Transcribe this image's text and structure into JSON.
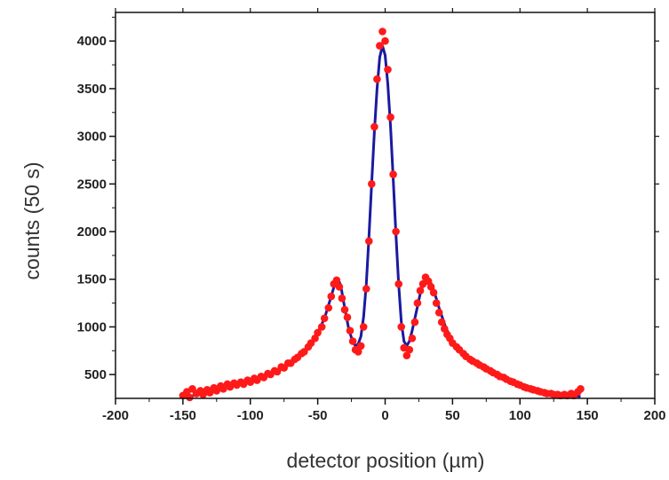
{
  "chart_data": {
    "type": "scatter",
    "title": "",
    "xlabel": "detector position (µm)",
    "ylabel": "counts (50 s)",
    "xlim": [
      -200,
      200
    ],
    "ylim": [
      250,
      4300
    ],
    "xticks": [
      -200,
      -150,
      -100,
      -50,
      0,
      50,
      100,
      150,
      200
    ],
    "yticks": [
      500,
      1000,
      1500,
      2000,
      2500,
      3000,
      3500,
      4000
    ],
    "grid": false,
    "legend": "none",
    "series": [
      {
        "kind": "points",
        "color": "#ff1a1a",
        "points": [
          [
            -150,
            280
          ],
          [
            -147,
            320
          ],
          [
            -145,
            260
          ],
          [
            -143,
            350
          ],
          [
            -140,
            300
          ],
          [
            -137,
            330
          ],
          [
            -135,
            290
          ],
          [
            -132,
            340
          ],
          [
            -130,
            310
          ],
          [
            -127,
            360
          ],
          [
            -125,
            330
          ],
          [
            -122,
            380
          ],
          [
            -120,
            350
          ],
          [
            -117,
            400
          ],
          [
            -115,
            370
          ],
          [
            -112,
            410
          ],
          [
            -110,
            390
          ],
          [
            -107,
            420
          ],
          [
            -105,
            400
          ],
          [
            -102,
            440
          ],
          [
            -100,
            420
          ],
          [
            -97,
            460
          ],
          [
            -95,
            440
          ],
          [
            -92,
            480
          ],
          [
            -90,
            470
          ],
          [
            -87,
            510
          ],
          [
            -85,
            500
          ],
          [
            -82,
            540
          ],
          [
            -80,
            530
          ],
          [
            -77,
            580
          ],
          [
            -75,
            570
          ],
          [
            -72,
            620
          ],
          [
            -70,
            620
          ],
          [
            -67,
            660
          ],
          [
            -65,
            680
          ],
          [
            -62,
            720
          ],
          [
            -60,
            740
          ],
          [
            -57,
            790
          ],
          [
            -55,
            830
          ],
          [
            -52,
            880
          ],
          [
            -50,
            940
          ],
          [
            -47,
            1000
          ],
          [
            -45,
            1090
          ],
          [
            -42,
            1200
          ],
          [
            -40,
            1320
          ],
          [
            -38,
            1450
          ],
          [
            -36,
            1490
          ],
          [
            -34,
            1420
          ],
          [
            -32,
            1300
          ],
          [
            -30,
            1180
          ],
          [
            -28,
            1100
          ],
          [
            -26,
            960
          ],
          [
            -24,
            850
          ],
          [
            -22,
            760
          ],
          [
            -20,
            740
          ],
          [
            -18,
            800
          ],
          [
            -16,
            1000
          ],
          [
            -14,
            1400
          ],
          [
            -12,
            1900
          ],
          [
            -10,
            2500
          ],
          [
            -8,
            3100
          ],
          [
            -6,
            3600
          ],
          [
            -4,
            3950
          ],
          [
            -2,
            4100
          ],
          [
            0,
            4000
          ],
          [
            2,
            3700
          ],
          [
            4,
            3200
          ],
          [
            6,
            2600
          ],
          [
            8,
            2000
          ],
          [
            10,
            1450
          ],
          [
            12,
            1000
          ],
          [
            14,
            780
          ],
          [
            16,
            700
          ],
          [
            18,
            760
          ],
          [
            20,
            880
          ],
          [
            22,
            1050
          ],
          [
            24,
            1250
          ],
          [
            26,
            1380
          ],
          [
            28,
            1450
          ],
          [
            30,
            1520
          ],
          [
            32,
            1480
          ],
          [
            34,
            1420
          ],
          [
            36,
            1360
          ],
          [
            38,
            1250
          ],
          [
            40,
            1150
          ],
          [
            42,
            1050
          ],
          [
            44,
            980
          ],
          [
            46,
            920
          ],
          [
            48,
            880
          ],
          [
            50,
            830
          ],
          [
            53,
            790
          ],
          [
            55,
            760
          ],
          [
            58,
            720
          ],
          [
            60,
            690
          ],
          [
            63,
            660
          ],
          [
            65,
            640
          ],
          [
            68,
            620
          ],
          [
            70,
            600
          ],
          [
            73,
            580
          ],
          [
            75,
            560
          ],
          [
            78,
            540
          ],
          [
            80,
            520
          ],
          [
            83,
            500
          ],
          [
            85,
            480
          ],
          [
            88,
            470
          ],
          [
            90,
            450
          ],
          [
            93,
            430
          ],
          [
            95,
            420
          ],
          [
            98,
            400
          ],
          [
            100,
            390
          ],
          [
            103,
            370
          ],
          [
            105,
            360
          ],
          [
            108,
            350
          ],
          [
            110,
            340
          ],
          [
            113,
            330
          ],
          [
            115,
            320
          ],
          [
            118,
            310
          ],
          [
            120,
            300
          ],
          [
            123,
            300
          ],
          [
            125,
            290
          ],
          [
            128,
            290
          ],
          [
            130,
            280
          ],
          [
            133,
            290
          ],
          [
            135,
            280
          ],
          [
            138,
            300
          ],
          [
            140,
            280
          ],
          [
            143,
            320
          ],
          [
            145,
            350
          ]
        ]
      },
      {
        "kind": "line",
        "color": "#1a1aa0",
        "points": [
          [
            -150,
            260
          ],
          [
            -140,
            285
          ],
          [
            -130,
            315
          ],
          [
            -120,
            350
          ],
          [
            -110,
            390
          ],
          [
            -100,
            425
          ],
          [
            -90,
            470
          ],
          [
            -80,
            530
          ],
          [
            -70,
            615
          ],
          [
            -60,
            740
          ],
          [
            -55,
            830
          ],
          [
            -50,
            940
          ],
          [
            -45,
            1090
          ],
          [
            -40,
            1320
          ],
          [
            -37,
            1470
          ],
          [
            -35,
            1500
          ],
          [
            -33,
            1440
          ],
          [
            -30,
            1200
          ],
          [
            -27,
            980
          ],
          [
            -24,
            840
          ],
          [
            -22,
            800
          ],
          [
            -20,
            820
          ],
          [
            -18,
            900
          ],
          [
            -16,
            1100
          ],
          [
            -14,
            1450
          ],
          [
            -12,
            1950
          ],
          [
            -10,
            2500
          ],
          [
            -8,
            3050
          ],
          [
            -6,
            3500
          ],
          [
            -4,
            3830
          ],
          [
            -2,
            3950
          ],
          [
            0,
            3850
          ],
          [
            2,
            3550
          ],
          [
            4,
            3100
          ],
          [
            6,
            2550
          ],
          [
            8,
            1980
          ],
          [
            10,
            1450
          ],
          [
            12,
            1050
          ],
          [
            14,
            850
          ],
          [
            16,
            800
          ],
          [
            18,
            850
          ],
          [
            20,
            960
          ],
          [
            23,
            1150
          ],
          [
            26,
            1350
          ],
          [
            29,
            1480
          ],
          [
            31,
            1520
          ],
          [
            33,
            1490
          ],
          [
            36,
            1390
          ],
          [
            40,
            1200
          ],
          [
            45,
            990
          ],
          [
            50,
            850
          ],
          [
            55,
            760
          ],
          [
            60,
            690
          ],
          [
            70,
            600
          ],
          [
            80,
            530
          ],
          [
            90,
            460
          ],
          [
            100,
            400
          ],
          [
            110,
            350
          ],
          [
            120,
            310
          ],
          [
            130,
            290
          ],
          [
            140,
            275
          ],
          [
            145,
            270
          ]
        ]
      }
    ]
  }
}
